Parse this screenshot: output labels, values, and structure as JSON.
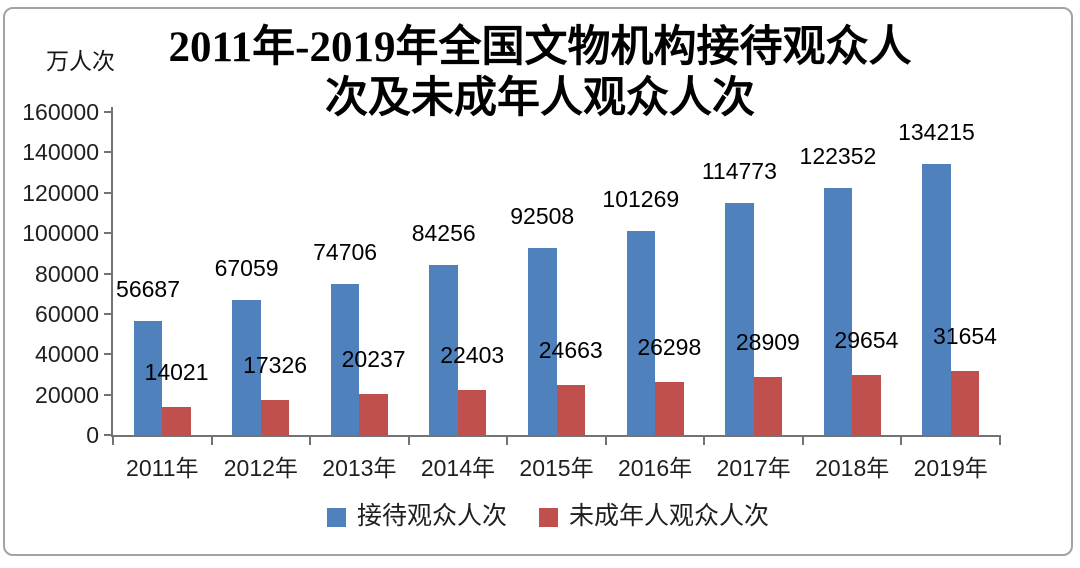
{
  "chart_data": {
    "type": "bar",
    "title": "2011年-2019年全国文物机构接待观众人次及未成年人观众人次",
    "title_lines": [
      "2011年-2019年全国文物机构接待观众人",
      "次及未成年人观众人次"
    ],
    "unit_label": "万人次",
    "categories": [
      "2011年",
      "2012年",
      "2013年",
      "2014年",
      "2015年",
      "2016年",
      "2017年",
      "2018年",
      "2019年"
    ],
    "series": [
      {
        "name": "接待观众人次",
        "key": "total-visitors",
        "color": "#4F81BD",
        "values": [
          56687,
          67059,
          74706,
          84256,
          92508,
          101269,
          114773,
          122352,
          134215
        ]
      },
      {
        "name": "未成年人观众人次",
        "key": "minor-visitors",
        "color": "#C0504D",
        "values": [
          14021,
          17326,
          20237,
          22403,
          24663,
          26298,
          28909,
          29654,
          31654
        ]
      }
    ],
    "ylim": [
      0,
      160000
    ],
    "yticks": [
      0,
      20000,
      40000,
      60000,
      80000,
      100000,
      120000,
      140000,
      160000
    ],
    "grid": false,
    "legend_position": "bottom",
    "data_labels": "outside-end",
    "axis_color": "#737373",
    "border_color": "#a3a3a3"
  }
}
